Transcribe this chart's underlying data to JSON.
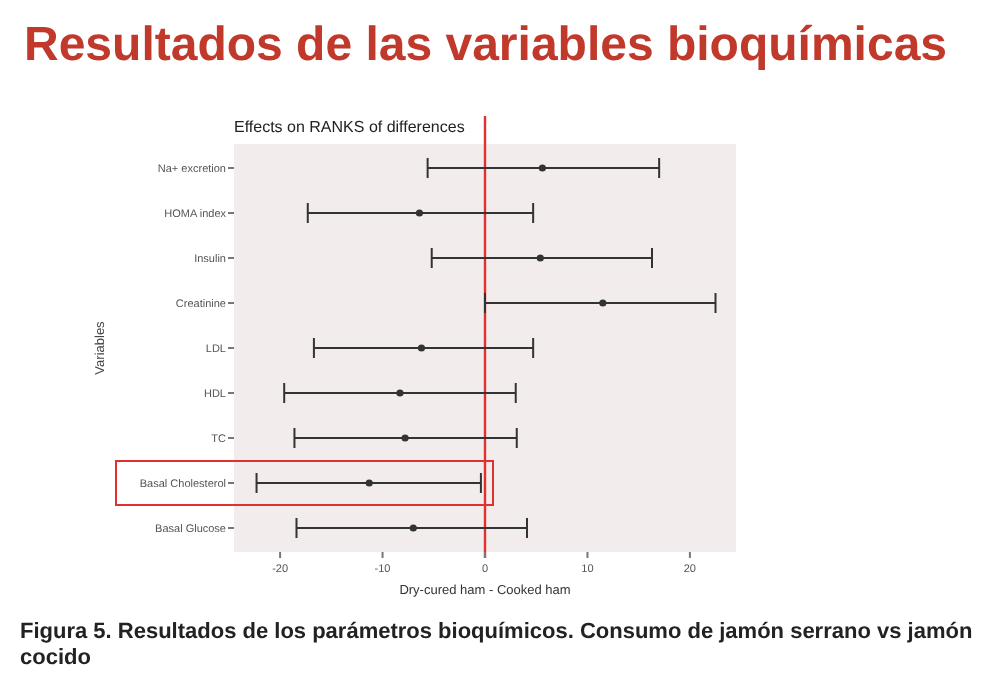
{
  "chart_data": {
    "type": "scatter",
    "orientation": "horizontal",
    "title": "Resultados de las variables bioquímicas",
    "subtitle": "Effects on RANKS of differences",
    "xlabel": "Dry-cured ham - Cooked ham",
    "ylabel": "Variables",
    "categories": [
      "Na+ excretion",
      "HOMA index",
      "Insulin",
      "Creatinine",
      "LDL",
      "HDL",
      "TC",
      "Basal Cholesterol",
      "Basal Glucose"
    ],
    "values": [
      5.6,
      -6.4,
      5.4,
      11.5,
      -6.2,
      -8.3,
      -7.8,
      -11.3,
      -7
    ],
    "errors": [
      [
        -5.6,
        17
      ],
      [
        -17.3,
        4.7
      ],
      [
        -5.2,
        16.3
      ],
      [
        0,
        22.5
      ],
      [
        -16.7,
        4.7
      ],
      [
        -19.6,
        3
      ],
      [
        -18.6,
        3.1
      ],
      [
        -22.3,
        -0.4
      ],
      [
        -18.4,
        4.1
      ]
    ],
    "color": "#333333",
    "marker": "circle",
    "grid": false,
    "xlim": [
      -24.5,
      24.5
    ],
    "xticks": [
      -20,
      -10,
      0,
      10,
      20
    ],
    "ref_lines": [
      {
        "axis": "x",
        "value": 0,
        "color": "#e0312f"
      }
    ],
    "annotations": [
      "Figura 5. Resultados de los parámetros bioquímicos. Consumo de jamón serrano vs jamón cocido"
    ]
  }
}
